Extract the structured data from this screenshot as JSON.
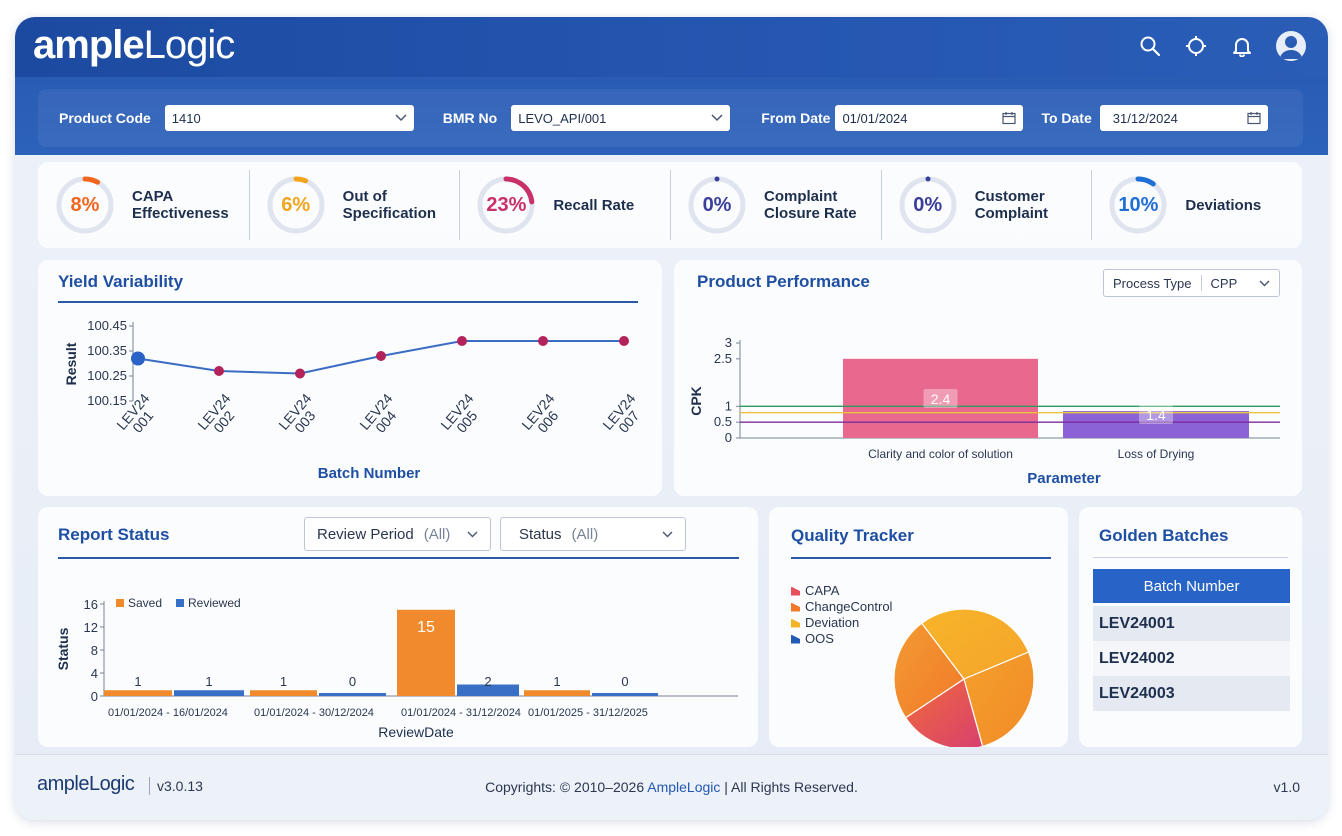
{
  "app": {
    "logo_bold": "ample",
    "logo_light": "Logic",
    "logo_prefix": "a"
  },
  "header_icons": [
    "search-icon",
    "crosshair-icon",
    "bell-icon",
    "user-avatar"
  ],
  "filters": {
    "product_code_label": "Product Code",
    "product_code_value": "1410",
    "bmr_label": "BMR No",
    "bmr_value": "LEVO_API/001",
    "from_label": "From Date",
    "from_value": "01/01/2024",
    "to_label": "To Date",
    "to_value": "31/12/2024"
  },
  "kpis": [
    {
      "value": "8%",
      "percent": 8,
      "label1": "CAPA",
      "label2": "Effectiveness",
      "color": "#f0661e"
    },
    {
      "value": "6%",
      "percent": 6,
      "label1": "Out of",
      "label2": "Specification",
      "color": "#f2a51d"
    },
    {
      "value": "23%",
      "percent": 23,
      "label1": "Recall Rate",
      "label2": "",
      "color": "#c9306a"
    },
    {
      "value": "0%",
      "percent": 0,
      "label1": "Complaint",
      "label2": "Closure Rate",
      "color": "#3b3f9a"
    },
    {
      "value": "0%",
      "percent": 0,
      "label1": "Customer",
      "label2": "Complaint",
      "color": "#3b3f9a"
    },
    {
      "value": "10%",
      "percent": 10,
      "label1": "Deviations",
      "label2": "",
      "color": "#1f6fd6"
    }
  ],
  "yield": {
    "title": "Yield Variability",
    "chart_data": {
      "type": "line",
      "categories": [
        "LEV24 001",
        "LEV24 002",
        "LEV24 003",
        "LEV24 004",
        "LEV24 005",
        "LEV24 006",
        "LEV24 007"
      ],
      "values": [
        100.32,
        100.27,
        100.26,
        100.33,
        100.39,
        100.39,
        100.39
      ],
      "xlabel": "Batch Number",
      "ylabel": "Result",
      "yticks": [
        "100.45",
        "100.35",
        "100.25",
        "100.15"
      ],
      "ylim": [
        100.15,
        100.45
      ]
    }
  },
  "performance": {
    "title": "Product Performance",
    "process_type_label": "Process Type",
    "process_type_value": "CPP",
    "chart_data": {
      "type": "bar",
      "categories": [
        "Clarity and color of solution",
        "Loss of Drying"
      ],
      "values": [
        2.4,
        1.4
      ],
      "value_labels": [
        "2.4",
        "1.4"
      ],
      "display_heights": [
        2.5,
        0.85
      ],
      "xlabel": "Parameter",
      "ylabel": "CPK",
      "yticks": [
        "3",
        "2.5",
        "1",
        "0.5",
        "0"
      ],
      "ytick_values": [
        3,
        2.5,
        1,
        0.5,
        0
      ],
      "reference_lines": [
        1,
        0.8,
        0.5
      ],
      "colors": [
        "#e8688e",
        "#8b63d6"
      ]
    }
  },
  "report": {
    "title": "Report Status",
    "review_period_label": "Review Period",
    "review_period_value": "(All)",
    "status_label": "Status",
    "status_value": "(All)",
    "chart_data": {
      "type": "bar",
      "categories": [
        "01/01/2024 - 16/01/2024",
        "01/01/2024 - 30/12/2024",
        "01/01/2024 - 31/12/2024",
        "01/01/2025 - 31/12/2025"
      ],
      "series": [
        {
          "name": "Saved",
          "values": [
            1,
            1,
            15,
            1
          ],
          "color": "#f08a2c"
        },
        {
          "name": "Reviewed",
          "values": [
            1,
            0,
            2,
            0
          ],
          "color": "#3a6fc6"
        }
      ],
      "labels": [
        "1",
        "1",
        "1",
        "0",
        "15",
        "2",
        "1",
        "0"
      ],
      "xlabel": "ReviewDate",
      "ylabel": "Status",
      "yticks": [
        "16",
        "12",
        "8",
        "4",
        "0"
      ],
      "ylim": [
        0,
        16
      ]
    }
  },
  "quality": {
    "title": "Quality Tracker",
    "chart_data": {
      "type": "pie",
      "labels": [
        "CAPA",
        "ChangeControl",
        "Deviation",
        "OOS"
      ],
      "values": [
        20,
        24,
        29,
        27
      ],
      "colors": [
        "#e8505e",
        "#f07a2a",
        "#f5b327",
        "#2559b8"
      ]
    }
  },
  "golden": {
    "title": "Golden Batches",
    "column": "Batch Number",
    "rows": [
      "LEV24001",
      "LEV24002",
      "LEV24003"
    ]
  },
  "footer": {
    "logo": "ampleLogic",
    "version": "v3.0.13",
    "copy_prefix": "Copyrights: © 2010–2026",
    "brand": "AmpleLogic",
    "copy_suffix": "| All Rights Reserved.",
    "right": "v1.0"
  }
}
